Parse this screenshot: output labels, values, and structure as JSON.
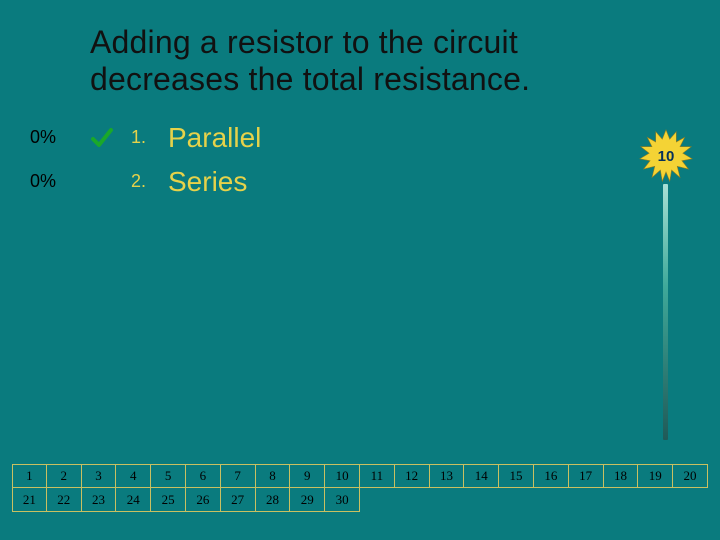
{
  "title_line1": "Adding a resistor to the circuit",
  "title_line2": "decreases the total resistance.",
  "options": [
    {
      "pct": "0%",
      "num": "1.",
      "label": "Parallel",
      "correct": true
    },
    {
      "pct": "0%",
      "num": "2.",
      "label": "Series",
      "correct": false
    }
  ],
  "countdown_value": "10",
  "grid": {
    "row1": [
      "1",
      "2",
      "3",
      "4",
      "5",
      "6",
      "7",
      "8",
      "9",
      "10",
      "11",
      "12",
      "13",
      "14",
      "15",
      "16",
      "17",
      "18",
      "19",
      "20"
    ],
    "row2": [
      "21",
      "22",
      "23",
      "24",
      "25",
      "26",
      "27",
      "28",
      "29",
      "30",
      "",
      "",
      "",
      "",
      "",
      "",
      "",
      "",
      "",
      ""
    ]
  },
  "colors": {
    "background": "#0a7b7e",
    "title_text": "#111111",
    "accent_yellow": "#e6d24a",
    "grid_border": "#c9c061",
    "check_green": "#1aa82a",
    "starburst_fill": "#f4d335",
    "starburst_stroke": "#9a7f1a",
    "star_text": "#07305a"
  },
  "fonts": {
    "title_size_pt": 24,
    "option_label_size_pt": 21,
    "option_num_size_pt": 14,
    "grid_cell_size_pt": 10
  }
}
